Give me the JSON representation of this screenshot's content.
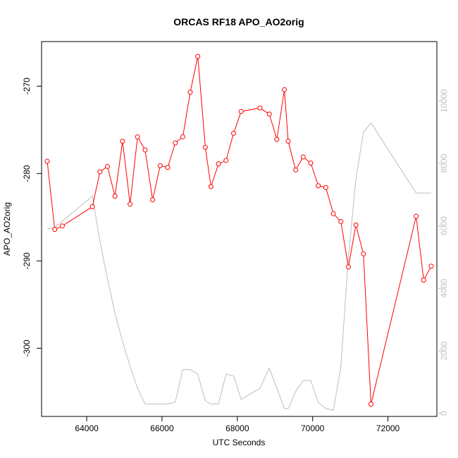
{
  "chart_data": {
    "type": "line",
    "title": "ORCAS RF18 APO_AO2orig",
    "xlabel": "UTC Seconds",
    "ylabel": "APO_AO2orig",
    "xlim": [
      62800,
      73300
    ],
    "ylim": [
      -307.8,
      -264.9
    ],
    "y2lim": [
      -100,
      11900
    ],
    "x_ticks": [
      64000,
      66000,
      68000,
      70000,
      72000
    ],
    "x_tick_labels": [
      "64000",
      "66000",
      "68000",
      "70000",
      "72000"
    ],
    "y_ticks": [
      -270,
      -280,
      -290,
      -300
    ],
    "y_tick_labels": [
      "-270",
      "-280",
      "-290",
      "-300"
    ],
    "y2_ticks": [
      0,
      2000,
      4000,
      6000,
      8000,
      10000
    ],
    "y2_tick_labels": [
      "0",
      "2000",
      "4000",
      "6000",
      "8000",
      "10000"
    ],
    "grid": false,
    "colors": {
      "primary": "#ff0000",
      "secondary": "#bebebe",
      "axis": "#000000"
    },
    "series": [
      {
        "type": "line-points",
        "axis": "left",
        "x": [
          62950,
          63150,
          63350,
          64150,
          64350,
          64550,
          64750,
          64950,
          65150,
          65350,
          65550,
          65750,
          65950,
          66150,
          66350,
          66550,
          66750,
          66950,
          67150,
          67300,
          67500,
          67700,
          67900,
          68100,
          68600,
          68850,
          69050,
          69250,
          69350,
          69550,
          69750,
          69950,
          70150,
          70350,
          70550,
          70750,
          70950,
          71150,
          71350,
          71550,
          72750,
          72950,
          73150
        ],
        "y": [
          -278.6,
          -286.4,
          -286.0,
          -283.8,
          -279.8,
          -279.2,
          -282.6,
          -276.3,
          -283.5,
          -275.8,
          -277.3,
          -283.0,
          -279.1,
          -279.3,
          -276.5,
          -275.8,
          -270.7,
          -266.6,
          -277.0,
          -281.5,
          -278.9,
          -278.5,
          -275.4,
          -272.9,
          -272.5,
          -273.2,
          -276.1,
          -270.4,
          -276.3,
          -279.6,
          -278.1,
          -278.8,
          -281.4,
          -281.6,
          -284.6,
          -285.5,
          -290.7,
          -285.9,
          -289.2,
          -306.4,
          -284.9,
          -292.2,
          -290.6
        ]
      },
      {
        "type": "line",
        "axis": "right",
        "x": [
          62950,
          63150,
          64150,
          64350,
          64550,
          64750,
          64950,
          65150,
          65350,
          65550,
          65750,
          65950,
          66150,
          66350,
          66550,
          66750,
          66950,
          67150,
          67300,
          67500,
          67700,
          67900,
          68100,
          68600,
          68850,
          69050,
          69250,
          69350,
          69550,
          69750,
          69950,
          70150,
          70350,
          70550,
          70750,
          70950,
          71150,
          71350,
          71550,
          72750,
          72950,
          73150
        ],
        "y": [
          5900,
          5950,
          6950,
          5500,
          4300,
          3200,
          2300,
          1500,
          800,
          300,
          300,
          300,
          300,
          350,
          1400,
          1400,
          1250,
          400,
          300,
          300,
          1250,
          1200,
          450,
          800,
          1450,
          800,
          150,
          150,
          700,
          1050,
          1050,
          350,
          150,
          100,
          1500,
          5000,
          7500,
          9000,
          9300,
          7050,
          7050,
          7050
        ]
      }
    ]
  }
}
